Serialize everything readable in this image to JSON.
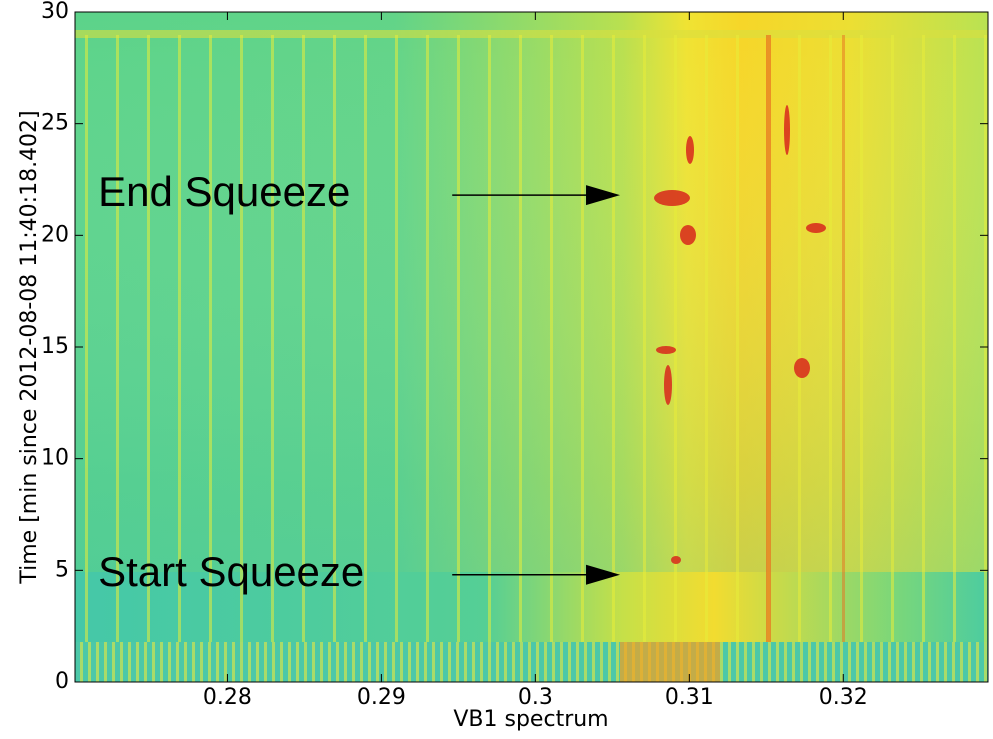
{
  "chart_data": {
    "type": "spectrogram",
    "xlabel": "VB1 spectrum",
    "ylabel": "Time [min since 2012-08-08 11:40:18.402]",
    "xlim": [
      0.2701,
      0.3294
    ],
    "ylim": [
      0,
      30
    ],
    "xticks": [
      0.28,
      0.29,
      0.3,
      0.31,
      0.32
    ],
    "yticks": [
      0,
      5,
      10,
      15,
      20,
      25,
      30
    ],
    "annotations": [
      {
        "text": "End Squeeze",
        "xytext": [
          0.2716,
          21.8
        ],
        "arrow_start": [
          0.2946,
          21.8
        ],
        "xy": [
          0.3055,
          21.8
        ]
      },
      {
        "text": "Start Squeeze",
        "xytext": [
          0.2716,
          4.8
        ],
        "arrow_start": [
          0.2946,
          4.8
        ],
        "xy": [
          0.3055,
          4.8
        ]
      }
    ]
  }
}
